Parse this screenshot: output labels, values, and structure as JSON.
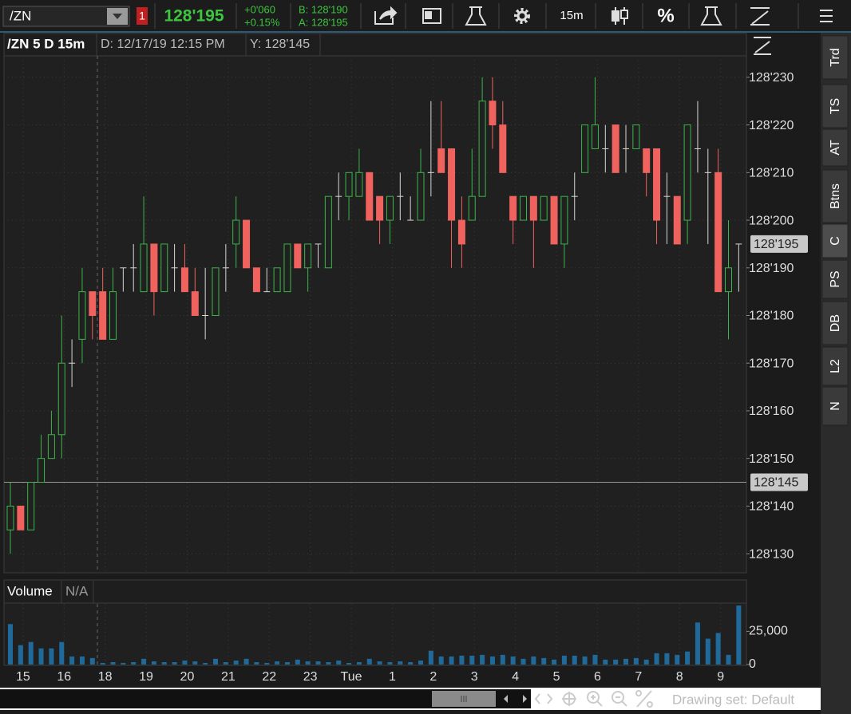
{
  "toolbar": {
    "symbol": "/ZN",
    "alert_count": "1",
    "last": "128'195",
    "change": "+0'060",
    "change_pct": "+0.15%",
    "bid": "B: 128'190",
    "ask": "A: 128'195",
    "timeframe": "15m",
    "percent": "%"
  },
  "side_tabs": [
    "Trd",
    "TS",
    "AT",
    "Btns",
    "C",
    "PS",
    "DB",
    "L2",
    "N"
  ],
  "footer": {
    "drawing_set": "Drawing set: Default"
  },
  "chart_data": [
    {
      "type": "candlestick",
      "title": "/ZN 5 D 15m",
      "date_label": "D: 12/17/19 12:15 PM",
      "y_label": "Y: 128'145",
      "categories": [
        null,
        "15",
        null,
        null,
        null,
        "16",
        null,
        null,
        null,
        "18",
        null,
        null,
        null,
        "19",
        null,
        null,
        null,
        "20",
        null,
        null,
        null,
        "21",
        null,
        null,
        null,
        "22",
        null,
        null,
        null,
        "23",
        null,
        null,
        null,
        "Tue",
        null,
        null,
        null,
        "1",
        null,
        null,
        null,
        "2",
        null,
        null,
        null,
        "3",
        null,
        null,
        null,
        "4",
        null,
        null,
        null,
        "5",
        null,
        null,
        null,
        "6",
        null,
        null,
        null,
        "7",
        null,
        null,
        null,
        "8",
        null,
        null,
        null,
        "9",
        null,
        null
      ],
      "open": [
        128.421875,
        128.4375,
        128.421875,
        128.453125,
        128.46875,
        128.484375,
        128.53125,
        128.546875,
        128.578125,
        128.578125,
        128.546875,
        128.59375,
        128.59375,
        128.578125,
        128.609375,
        128.578125,
        128.59375,
        128.59375,
        128.578125,
        128.5625,
        128.5625,
        128.59375,
        128.609375,
        128.625,
        128.59375,
        128.578125,
        128.578125,
        128.578125,
        128.609375,
        128.59375,
        128.609375,
        128.59375,
        128.640625,
        128.640625,
        128.640625,
        128.65625,
        128.640625,
        128.625,
        128.640625,
        128.625,
        128.625,
        128.65625,
        128.671875,
        128.671875,
        128.625,
        128.625,
        128.640625,
        128.703125,
        128.6875,
        128.640625,
        128.625,
        128.640625,
        128.625,
        128.640625,
        128.609375,
        128.640625,
        128.65625,
        128.671875,
        128.671875,
        128.6875,
        128.671875,
        128.671875,
        128.671875,
        128.671875,
        128.640625,
        128.640625,
        128.625,
        128.671875,
        128.65625,
        128.65625,
        128.578125,
        128.609375
      ],
      "high": [
        128.453125,
        128.4375,
        128.453125,
        128.484375,
        128.5,
        128.5625,
        128.546875,
        128.59375,
        128.578125,
        128.59375,
        128.59375,
        128.59375,
        128.609375,
        128.640625,
        128.609375,
        128.609375,
        128.609375,
        128.609375,
        128.59375,
        128.59375,
        128.59375,
        128.609375,
        128.640625,
        128.625,
        128.59375,
        128.59375,
        128.59375,
        128.609375,
        128.609375,
        128.609375,
        128.609375,
        128.640625,
        128.65625,
        128.65625,
        128.671875,
        128.65625,
        128.640625,
        128.640625,
        128.65625,
        128.640625,
        128.671875,
        128.703125,
        128.703125,
        128.671875,
        128.640625,
        128.671875,
        128.71875,
        128.71875,
        128.703125,
        128.640625,
        128.640625,
        128.640625,
        128.640625,
        128.640625,
        128.640625,
        128.65625,
        128.6875,
        128.71875,
        128.6875,
        128.6875,
        128.6875,
        128.6875,
        128.671875,
        128.671875,
        128.65625,
        128.640625,
        128.6875,
        128.703125,
        128.671875,
        128.671875,
        128.625,
        128.609375
      ],
      "low": [
        128.40625,
        128.421875,
        128.421875,
        128.453125,
        128.46875,
        128.46875,
        128.515625,
        128.53125,
        128.546875,
        128.546875,
        128.546875,
        128.578125,
        128.578125,
        128.578125,
        128.5625,
        128.578125,
        128.578125,
        128.578125,
        128.5625,
        128.546875,
        128.5625,
        128.578125,
        128.59375,
        128.59375,
        128.578125,
        128.578125,
        128.578125,
        128.578125,
        128.59375,
        128.578125,
        128.59375,
        128.59375,
        128.625,
        128.625,
        128.640625,
        128.625,
        128.609375,
        128.609375,
        128.625,
        128.625,
        128.625,
        128.640625,
        128.65625,
        128.59375,
        128.59375,
        128.625,
        128.640625,
        128.671875,
        128.65625,
        128.609375,
        128.625,
        128.59375,
        128.625,
        128.609375,
        128.59375,
        128.625,
        128.65625,
        128.671875,
        128.65625,
        128.65625,
        128.65625,
        128.671875,
        128.640625,
        128.609375,
        128.609375,
        128.609375,
        128.609375,
        128.65625,
        128.609375,
        128.578125,
        128.546875,
        128.578125
      ],
      "close": [
        128.4375,
        128.421875,
        128.453125,
        128.46875,
        128.484375,
        128.53125,
        128.53125,
        128.578125,
        128.5625,
        128.546875,
        128.578125,
        128.59375,
        128.59375,
        128.609375,
        128.578125,
        128.609375,
        128.59375,
        128.578125,
        128.5625,
        128.5625,
        128.59375,
        128.59375,
        128.625,
        128.59375,
        128.578125,
        128.578125,
        128.59375,
        128.609375,
        128.59375,
        128.609375,
        128.609375,
        128.640625,
        128.640625,
        128.65625,
        128.65625,
        128.625,
        128.625,
        128.640625,
        128.640625,
        128.625,
        128.65625,
        128.65625,
        128.65625,
        128.625,
        128.609375,
        128.640625,
        128.703125,
        128.6875,
        128.65625,
        128.625,
        128.640625,
        128.625,
        128.640625,
        128.609375,
        128.640625,
        128.640625,
        128.6875,
        128.6875,
        128.671875,
        128.65625,
        128.671875,
        128.6875,
        128.65625,
        128.625,
        128.640625,
        128.609375,
        128.6875,
        128.671875,
        128.65625,
        128.578125,
        128.59375,
        128.609375
      ],
      "up_color": "#3cb54a",
      "down_color": "#f0625e",
      "doji_color": "#d8d8d8",
      "ylim": [
        128.39375,
        128.7328125
      ],
      "yticks": [
        {
          "value": 128.40625,
          "label": "128'130"
        },
        {
          "value": 128.4375,
          "label": "128'140"
        },
        {
          "value": 128.46875,
          "label": "128'150"
        },
        {
          "value": 128.5,
          "label": "128'160"
        },
        {
          "value": 128.53125,
          "label": "128'170"
        },
        {
          "value": 128.5625,
          "label": "128'180"
        },
        {
          "value": 128.59375,
          "label": "128'190"
        },
        {
          "value": 128.625,
          "label": "128'200"
        },
        {
          "value": 128.65625,
          "label": "128'210"
        },
        {
          "value": 128.6875,
          "label": "128'220"
        },
        {
          "value": 128.71875,
          "label": "128'230"
        }
      ],
      "last_price": {
        "value": 128.609375,
        "label": "128'195"
      },
      "crosshair": {
        "value": 128.453125,
        "label": "128'145"
      },
      "grid": true
    },
    {
      "type": "bar",
      "title": "Volume",
      "subtitle": "N/A",
      "color": "#1f6a9a",
      "values": [
        30500,
        14600,
        17000,
        12200,
        12200,
        17000,
        6100,
        6100,
        4900,
        1200,
        1800,
        1200,
        1800,
        4300,
        2400,
        1800,
        1800,
        3000,
        2400,
        1200,
        4300,
        1800,
        3000,
        4300,
        1800,
        1200,
        2400,
        1800,
        3700,
        2400,
        2400,
        1800,
        3000,
        1200,
        1800,
        4300,
        2400,
        1800,
        2400,
        1800,
        3000,
        10400,
        6100,
        6100,
        6700,
        6700,
        7300,
        6100,
        7300,
        6100,
        4300,
        6100,
        4900,
        3700,
        6700,
        6700,
        6100,
        7300,
        3700,
        3700,
        4300,
        4900,
        3700,
        8500,
        8500,
        7300,
        9800,
        31700,
        19500,
        23800,
        7300,
        44500
      ],
      "ylim": [
        0,
        45700
      ],
      "yticks": [
        0,
        {
          "value": 25000,
          "label": "25,000"
        }
      ]
    }
  ]
}
